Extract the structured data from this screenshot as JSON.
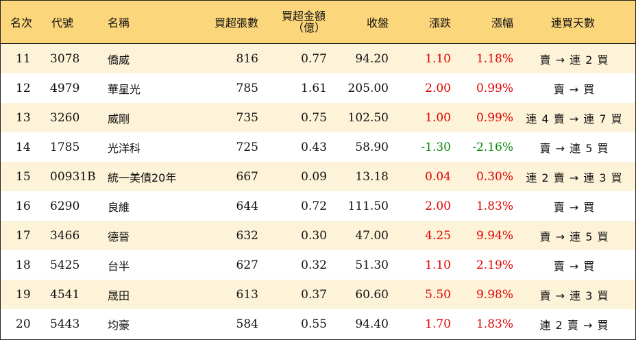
{
  "headers": {
    "rank": "名次",
    "code": "代號",
    "name": "名稱",
    "net_lots": "買超張數",
    "net_amount_line1": "買超金額",
    "net_amount_line2": "（億）",
    "close": "收盤",
    "change": "漲跌",
    "change_pct": "漲幅",
    "streak": "連買天數"
  },
  "rows": [
    {
      "rank": "11",
      "code": "3078",
      "name": "僑威",
      "net_lots": "816",
      "net_amount": "0.77",
      "close": "94.20",
      "change": "1.10",
      "change_pct": "1.18%",
      "streak": "賣 → 連 2 買",
      "dir": "up"
    },
    {
      "rank": "12",
      "code": "4979",
      "name": "華星光",
      "net_lots": "785",
      "net_amount": "1.61",
      "close": "205.00",
      "change": "2.00",
      "change_pct": "0.99%",
      "streak": "賣 → 買",
      "dir": "up"
    },
    {
      "rank": "13",
      "code": "3260",
      "name": "威剛",
      "net_lots": "735",
      "net_amount": "0.75",
      "close": "102.50",
      "change": "1.00",
      "change_pct": "0.99%",
      "streak": "連 4 賣 → 連 7 買",
      "dir": "up"
    },
    {
      "rank": "14",
      "code": "1785",
      "name": "光洋科",
      "net_lots": "725",
      "net_amount": "0.43",
      "close": "58.90",
      "change": "-1.30",
      "change_pct": "-2.16%",
      "streak": "賣 → 連 5 買",
      "dir": "down"
    },
    {
      "rank": "15",
      "code": "00931B",
      "name": "統一美債20年",
      "net_lots": "667",
      "net_amount": "0.09",
      "close": "13.18",
      "change": "0.04",
      "change_pct": "0.30%",
      "streak": "連 2 賣 → 連 3 買",
      "dir": "up"
    },
    {
      "rank": "16",
      "code": "6290",
      "name": "良維",
      "net_lots": "644",
      "net_amount": "0.72",
      "close": "111.50",
      "change": "2.00",
      "change_pct": "1.83%",
      "streak": "賣 → 買",
      "dir": "up"
    },
    {
      "rank": "17",
      "code": "3466",
      "name": "德晉",
      "net_lots": "632",
      "net_amount": "0.30",
      "close": "47.00",
      "change": "4.25",
      "change_pct": "9.94%",
      "streak": "賣 → 連 5 買",
      "dir": "up"
    },
    {
      "rank": "18",
      "code": "5425",
      "name": "台半",
      "net_lots": "627",
      "net_amount": "0.32",
      "close": "51.30",
      "change": "1.10",
      "change_pct": "2.19%",
      "streak": "賣 → 買",
      "dir": "up"
    },
    {
      "rank": "19",
      "code": "4541",
      "name": "晟田",
      "net_lots": "613",
      "net_amount": "0.37",
      "close": "60.60",
      "change": "5.50",
      "change_pct": "9.98%",
      "streak": "賣 → 連 3 買",
      "dir": "up"
    },
    {
      "rank": "20",
      "code": "5443",
      "name": "均豪",
      "net_lots": "584",
      "net_amount": "0.55",
      "close": "94.40",
      "change": "1.70",
      "change_pct": "1.83%",
      "streak": "連 2 賣 → 買",
      "dir": "up"
    }
  ],
  "colors": {
    "header_bg": "#fcd67a",
    "stripe_bg": "#fdf3d8",
    "up": "#e00000",
    "down": "#0a8a0a"
  }
}
